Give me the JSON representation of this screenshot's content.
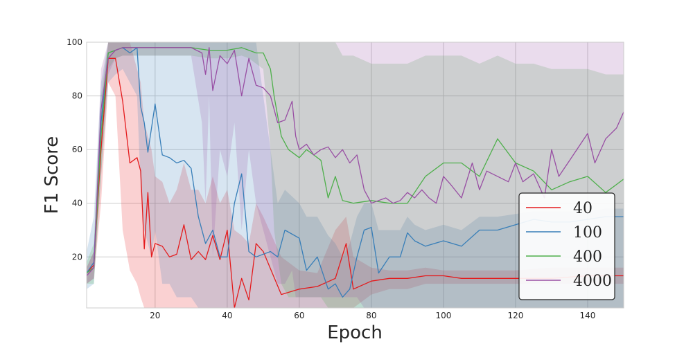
{
  "chart_data": {
    "type": "line",
    "title": "",
    "xlabel": "Epoch",
    "ylabel": "F1 Score",
    "xlim": [
      1,
      150
    ],
    "ylim": [
      1,
      100
    ],
    "xticks": [
      20,
      40,
      60,
      80,
      100,
      120,
      140
    ],
    "yticks": [
      20,
      40,
      60,
      80,
      100
    ],
    "grid": true,
    "legend_position": "bottom-right",
    "series": [
      {
        "name": "40",
        "color": "#e41a1c",
        "x": [
          1,
          3,
          5,
          7,
          9,
          11,
          13,
          15,
          16,
          17,
          18,
          19,
          20,
          22,
          24,
          26,
          28,
          30,
          32,
          34,
          36,
          38,
          40,
          42,
          44,
          46,
          48,
          50,
          55,
          60,
          65,
          70,
          73,
          75,
          80,
          85,
          90,
          95,
          100,
          105,
          110,
          120,
          130,
          140,
          150
        ],
        "y": [
          14,
          17,
          60,
          94,
          94,
          78,
          55,
          57,
          52,
          23,
          44,
          20,
          25,
          24,
          20,
          21,
          32,
          19,
          22,
          19,
          28,
          19,
          30,
          1,
          12,
          4,
          25,
          22,
          6,
          8,
          9,
          12,
          25,
          8,
          11,
          12,
          12,
          13,
          13,
          12,
          12,
          12,
          12,
          13,
          13
        ],
        "upper": [
          16,
          22,
          75,
          100,
          100,
          100,
          100,
          90,
          85,
          70,
          65,
          60,
          50,
          48,
          40,
          45,
          55,
          45,
          45,
          40,
          50,
          40,
          45,
          30,
          28,
          25,
          40,
          35,
          20,
          15,
          14,
          30,
          35,
          20,
          16,
          15,
          15,
          16,
          15,
          15,
          15,
          15,
          16,
          16,
          16
        ],
        "lower": [
          10,
          12,
          40,
          85,
          80,
          30,
          15,
          10,
          5,
          1,
          1,
          1,
          1,
          1,
          1,
          1,
          1,
          1,
          1,
          1,
          1,
          1,
          1,
          1,
          1,
          1,
          1,
          1,
          1,
          1,
          1,
          1,
          1,
          1,
          6,
          8,
          8,
          10,
          10,
          10,
          10,
          10,
          10,
          10,
          10
        ]
      },
      {
        "name": "100",
        "color": "#377eb8",
        "x": [
          1,
          3,
          5,
          7,
          9,
          11,
          13,
          15,
          16,
          17,
          18,
          19,
          20,
          22,
          24,
          26,
          28,
          30,
          32,
          34,
          36,
          38,
          40,
          42,
          44,
          46,
          48,
          50,
          52,
          54,
          56,
          60,
          62,
          65,
          68,
          70,
          72,
          74,
          76,
          78,
          80,
          82,
          85,
          88,
          90,
          92,
          95,
          100,
          105,
          110,
          115,
          120,
          125,
          130,
          135,
          140,
          145,
          150
        ],
        "y": [
          14,
          18,
          70,
          96,
          97,
          98,
          96,
          98,
          76,
          70,
          59,
          68,
          77,
          58,
          57,
          55,
          56,
          53,
          35,
          25,
          30,
          20,
          20,
          40,
          51,
          22,
          20,
          21,
          22,
          20,
          30,
          27,
          15,
          20,
          8,
          10,
          5,
          8,
          20,
          30,
          31,
          14,
          20,
          20,
          29,
          26,
          24,
          26,
          24,
          30,
          30,
          32,
          34,
          33,
          33,
          34,
          35,
          35
        ],
        "upper": [
          22,
          35,
          85,
          100,
          100,
          100,
          100,
          100,
          100,
          100,
          100,
          100,
          100,
          100,
          100,
          100,
          100,
          100,
          100,
          100,
          100,
          100,
          100,
          100,
          100,
          100,
          100,
          80,
          60,
          40,
          45,
          40,
          35,
          35,
          28,
          25,
          20,
          25,
          35,
          40,
          40,
          30,
          30,
          30,
          35,
          32,
          30,
          32,
          30,
          35,
          35,
          36,
          37,
          37,
          37,
          37,
          38,
          38
        ],
        "lower": [
          8,
          10,
          50,
          85,
          88,
          90,
          85,
          80,
          45,
          30,
          25,
          20,
          30,
          10,
          10,
          5,
          5,
          5,
          1,
          1,
          1,
          1,
          1,
          1,
          1,
          1,
          1,
          1,
          1,
          1,
          1,
          1,
          1,
          1,
          1,
          1,
          1,
          1,
          1,
          1,
          1,
          1,
          1,
          1,
          1,
          1,
          1,
          1,
          1,
          1,
          1,
          1,
          1,
          1,
          1,
          1,
          1,
          1
        ]
      },
      {
        "name": "400",
        "color": "#4daf4a",
        "x": [
          1,
          3,
          5,
          7,
          9,
          11,
          13,
          15,
          20,
          25,
          30,
          35,
          40,
          44,
          46,
          48,
          50,
          52,
          53,
          55,
          57,
          60,
          62,
          64,
          66,
          68,
          70,
          72,
          75,
          80,
          85,
          90,
          95,
          100,
          105,
          110,
          115,
          120,
          125,
          130,
          135,
          140,
          145,
          150
        ],
        "y": [
          14,
          16,
          65,
          96,
          97,
          98,
          98,
          98,
          98,
          98,
          98,
          97,
          97,
          98,
          97,
          96,
          96,
          90,
          80,
          65,
          60,
          57,
          60,
          58,
          56,
          42,
          50,
          41,
          40,
          41,
          40,
          40,
          50,
          55,
          55,
          50,
          64,
          55,
          52,
          45,
          48,
          50,
          44,
          49
        ],
        "upper": [
          18,
          25,
          80,
          100,
          100,
          100,
          100,
          100,
          100,
          100,
          100,
          100,
          100,
          100,
          100,
          100,
          100,
          100,
          100,
          100,
          100,
          100,
          100,
          100,
          100,
          100,
          100,
          95,
          95,
          92,
          92,
          92,
          95,
          95,
          95,
          92,
          95,
          92,
          92,
          90,
          90,
          90,
          88,
          88
        ],
        "lower": [
          10,
          10,
          50,
          90,
          94,
          95,
          95,
          95,
          95,
          95,
          95,
          94,
          94,
          95,
          94,
          92,
          90,
          60,
          30,
          10,
          5,
          5,
          5,
          5,
          5,
          1,
          1,
          1,
          1,
          1,
          1,
          1,
          1,
          1,
          1,
          1,
          1,
          1,
          1,
          1,
          1,
          1,
          1,
          1
        ]
      },
      {
        "name": "4000",
        "color": "#984ea3",
        "x": [
          1,
          3,
          5,
          7,
          9,
          11,
          13,
          15,
          20,
          25,
          30,
          33,
          34,
          35,
          36,
          38,
          40,
          42,
          44,
          46,
          48,
          50,
          52,
          54,
          56,
          58,
          59,
          60,
          62,
          64,
          66,
          68,
          70,
          72,
          74,
          76,
          78,
          80,
          82,
          84,
          86,
          88,
          90,
          92,
          94,
          96,
          98,
          100,
          102,
          105,
          108,
          110,
          112,
          115,
          118,
          120,
          122,
          125,
          128,
          130,
          132,
          135,
          138,
          140,
          142,
          145,
          148,
          150
        ],
        "y": [
          13,
          16,
          75,
          94,
          97,
          98,
          98,
          98,
          98,
          98,
          98,
          96,
          88,
          98,
          82,
          95,
          92,
          97,
          80,
          94,
          84,
          83,
          80,
          70,
          71,
          78,
          65,
          60,
          62,
          58,
          60,
          61,
          57,
          60,
          55,
          58,
          45,
          40,
          41,
          42,
          40,
          41,
          44,
          42,
          45,
          42,
          40,
          50,
          47,
          42,
          55,
          45,
          52,
          50,
          48,
          55,
          48,
          51,
          42,
          60,
          50,
          56,
          62,
          66,
          55,
          64,
          68,
          74
        ],
        "upper": [
          16,
          22,
          90,
          100,
          100,
          100,
          100,
          100,
          100,
          100,
          100,
          100,
          100,
          100,
          100,
          100,
          100,
          100,
          100,
          100,
          100,
          100,
          100,
          100,
          100,
          100,
          100,
          100,
          100,
          100,
          100,
          100,
          100,
          100,
          100,
          100,
          100,
          100,
          100,
          100,
          100,
          100,
          100,
          100,
          100,
          100,
          100,
          100,
          100,
          100,
          100,
          100,
          100,
          100,
          100,
          100,
          100,
          100,
          100,
          100,
          100,
          100,
          100,
          100,
          100,
          100,
          100,
          100
        ],
        "lower": [
          10,
          12,
          60,
          88,
          94,
          95,
          95,
          95,
          95,
          95,
          95,
          70,
          40,
          80,
          20,
          60,
          50,
          70,
          30,
          60,
          40,
          30,
          20,
          10,
          10,
          15,
          5,
          5,
          5,
          5,
          5,
          5,
          5,
          5,
          5,
          5,
          1,
          1,
          1,
          1,
          1,
          1,
          1,
          1,
          1,
          1,
          1,
          1,
          1,
          1,
          1,
          1,
          1,
          1,
          1,
          1,
          1,
          1,
          1,
          1,
          1,
          1,
          1,
          1,
          1,
          1,
          1,
          1
        ]
      }
    ]
  }
}
